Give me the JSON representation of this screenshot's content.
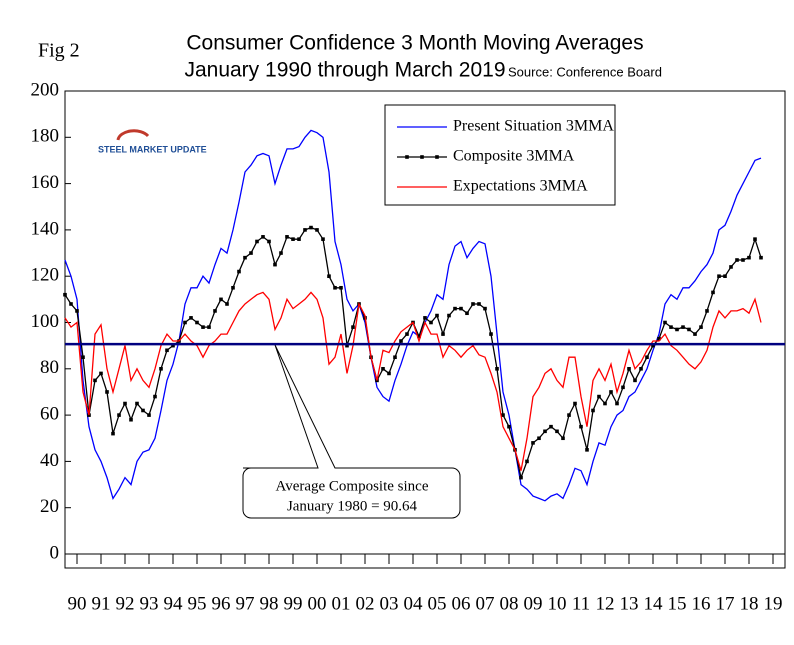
{
  "chart_data": {
    "type": "line",
    "figure_label": "Fig 2",
    "title": "Consumer Confidence 3 Month Moving Averages",
    "subtitle": "January 1990 through March 2019",
    "source": "Source: Conference Board",
    "logo_text": "STEEL MARKET UPDATE",
    "xlim": [
      1990,
      2020
    ],
    "xticks": [
      {
        "value": 1990.5,
        "label": "90"
      },
      {
        "value": 1991.5,
        "label": "91"
      },
      {
        "value": 1992.5,
        "label": "92"
      },
      {
        "value": 1993.5,
        "label": "93"
      },
      {
        "value": 1994.5,
        "label": "94"
      },
      {
        "value": 1995.5,
        "label": "95"
      },
      {
        "value": 1996.5,
        "label": "96"
      },
      {
        "value": 1997.5,
        "label": "97"
      },
      {
        "value": 1998.5,
        "label": "98"
      },
      {
        "value": 1999.5,
        "label": "99"
      },
      {
        "value": 2000.5,
        "label": "00"
      },
      {
        "value": 2001.5,
        "label": "01"
      },
      {
        "value": 2002.5,
        "label": "02"
      },
      {
        "value": 2003.5,
        "label": "03"
      },
      {
        "value": 2004.5,
        "label": "04"
      },
      {
        "value": 2005.5,
        "label": "05"
      },
      {
        "value": 2006.5,
        "label": "06"
      },
      {
        "value": 2007.5,
        "label": "07"
      },
      {
        "value": 2008.5,
        "label": "08"
      },
      {
        "value": 2009.5,
        "label": "09"
      },
      {
        "value": 2010.5,
        "label": "10"
      },
      {
        "value": 2011.5,
        "label": "11"
      },
      {
        "value": 2012.5,
        "label": "12"
      },
      {
        "value": 2013.5,
        "label": "13"
      },
      {
        "value": 2014.5,
        "label": "14"
      },
      {
        "value": 2015.5,
        "label": "15"
      },
      {
        "value": 2016.5,
        "label": "16"
      },
      {
        "value": 2017.5,
        "label": "17"
      },
      {
        "value": 2018.5,
        "label": "18"
      },
      {
        "value": 2019.5,
        "label": "19"
      }
    ],
    "ylim": [
      0,
      200
    ],
    "yticks": [
      0,
      20,
      40,
      60,
      80,
      100,
      120,
      140,
      160,
      180,
      200
    ],
    "grid": false,
    "legend_position": "upper right",
    "x": [
      1990,
      1990.25,
      1990.5,
      1990.75,
      1991,
      1991.25,
      1991.5,
      1991.75,
      1992,
      1992.25,
      1992.5,
      1992.75,
      1993,
      1993.25,
      1993.5,
      1993.75,
      1994,
      1994.25,
      1994.5,
      1994.75,
      1995,
      1995.25,
      1995.5,
      1995.75,
      1996,
      1996.25,
      1996.5,
      1996.75,
      1997,
      1997.25,
      1997.5,
      1997.75,
      1998,
      1998.25,
      1998.5,
      1998.75,
      1999,
      1999.25,
      1999.5,
      1999.75,
      2000,
      2000.25,
      2000.5,
      2000.75,
      2001,
      2001.25,
      2001.5,
      2001.75,
      2002,
      2002.25,
      2002.5,
      2002.75,
      2003,
      2003.25,
      2003.5,
      2003.75,
      2004,
      2004.25,
      2004.5,
      2004.75,
      2005,
      2005.25,
      2005.5,
      2005.75,
      2006,
      2006.25,
      2006.5,
      2006.75,
      2007,
      2007.25,
      2007.5,
      2007.75,
      2008,
      2008.25,
      2008.5,
      2008.75,
      2009,
      2009.25,
      2009.5,
      2009.75,
      2010,
      2010.25,
      2010.5,
      2010.75,
      2011,
      2011.25,
      2011.5,
      2011.75,
      2012,
      2012.25,
      2012.5,
      2012.75,
      2013,
      2013.25,
      2013.5,
      2013.75,
      2014,
      2014.25,
      2014.5,
      2014.75,
      2015,
      2015.25,
      2015.5,
      2015.75,
      2016,
      2016.25,
      2016.5,
      2016.75,
      2017,
      2017.25,
      2017.5,
      2017.75,
      2018,
      2018.25,
      2018.5,
      2018.75,
      2019
    ],
    "series": [
      {
        "name": "Present Situation 3MMA",
        "color": "#0000ff",
        "markers": false,
        "values": [
          127,
          120,
          110,
          75,
          55,
          45,
          40,
          33,
          24,
          28,
          33,
          30,
          40,
          44,
          45,
          50,
          62,
          75,
          82,
          92,
          108,
          115,
          115,
          120,
          117,
          125,
          132,
          130,
          140,
          152,
          165,
          168,
          172,
          173,
          172,
          160,
          168,
          175,
          175,
          176,
          180,
          183,
          182,
          180,
          165,
          135,
          125,
          110,
          105,
          108,
          100,
          85,
          72,
          68,
          66,
          75,
          82,
          90,
          96,
          94,
          100,
          105,
          112,
          110,
          125,
          133,
          135,
          128,
          132,
          135,
          134,
          120,
          95,
          70,
          60,
          45,
          30,
          28,
          25,
          24,
          23,
          25,
          26,
          24,
          30,
          37,
          36,
          30,
          40,
          48,
          47,
          55,
          60,
          62,
          68,
          70,
          75,
          80,
          88,
          95,
          108,
          112,
          110,
          115,
          115,
          118,
          122,
          125,
          130,
          140,
          142,
          148,
          155,
          160,
          165,
          170,
          171
        ]
      },
      {
        "name": "Composite 3MMA",
        "color": "#000000",
        "markers": true,
        "values": [
          112,
          108,
          105,
          85,
          60,
          75,
          78,
          70,
          52,
          60,
          65,
          58,
          65,
          62,
          60,
          68,
          80,
          88,
          90,
          92,
          100,
          102,
          100,
          98,
          98,
          105,
          110,
          108,
          115,
          122,
          128,
          130,
          135,
          137,
          135,
          125,
          130,
          137,
          136,
          136,
          140,
          141,
          140,
          136,
          120,
          115,
          115,
          90,
          98,
          108,
          102,
          85,
          75,
          80,
          78,
          85,
          92,
          95,
          100,
          94,
          102,
          100,
          103,
          95,
          103,
          106,
          106,
          104,
          108,
          108,
          106,
          95,
          80,
          60,
          55,
          45,
          33,
          40,
          48,
          50,
          53,
          55,
          53,
          50,
          60,
          65,
          55,
          45,
          62,
          68,
          65,
          70,
          65,
          72,
          80,
          75,
          80,
          85,
          90,
          93,
          100,
          98,
          97,
          98,
          97,
          95,
          98,
          105,
          113,
          120,
          120,
          124,
          127,
          127,
          128,
          136,
          128
        ]
      },
      {
        "name": "Expectations 3MMA",
        "color": "#ff0000",
        "markers": false,
        "values": [
          102,
          98,
          100,
          70,
          60,
          95,
          99,
          80,
          70,
          80,
          90,
          75,
          80,
          75,
          72,
          80,
          90,
          95,
          92,
          92,
          95,
          92,
          90,
          85,
          90,
          92,
          95,
          95,
          100,
          105,
          108,
          110,
          112,
          113,
          110,
          97,
          102,
          110,
          106,
          108,
          110,
          113,
          110,
          102,
          82,
          85,
          95,
          78,
          90,
          108,
          103,
          85,
          75,
          88,
          87,
          92,
          96,
          98,
          100,
          92,
          100,
          95,
          95,
          85,
          90,
          88,
          85,
          88,
          90,
          86,
          85,
          78,
          70,
          55,
          50,
          45,
          36,
          50,
          68,
          72,
          78,
          80,
          75,
          72,
          85,
          85,
          68,
          55,
          75,
          80,
          75,
          82,
          70,
          78,
          88,
          80,
          83,
          88,
          92,
          92,
          95,
          90,
          88,
          85,
          82,
          80,
          83,
          88,
          98,
          105,
          102,
          105,
          105,
          106,
          104,
          110,
          100
        ]
      }
    ],
    "reference_line": {
      "value": 90.64,
      "color": "#000080"
    },
    "annotation": [
      "Average Composite since",
      "January 1980 = 90.64"
    ]
  }
}
